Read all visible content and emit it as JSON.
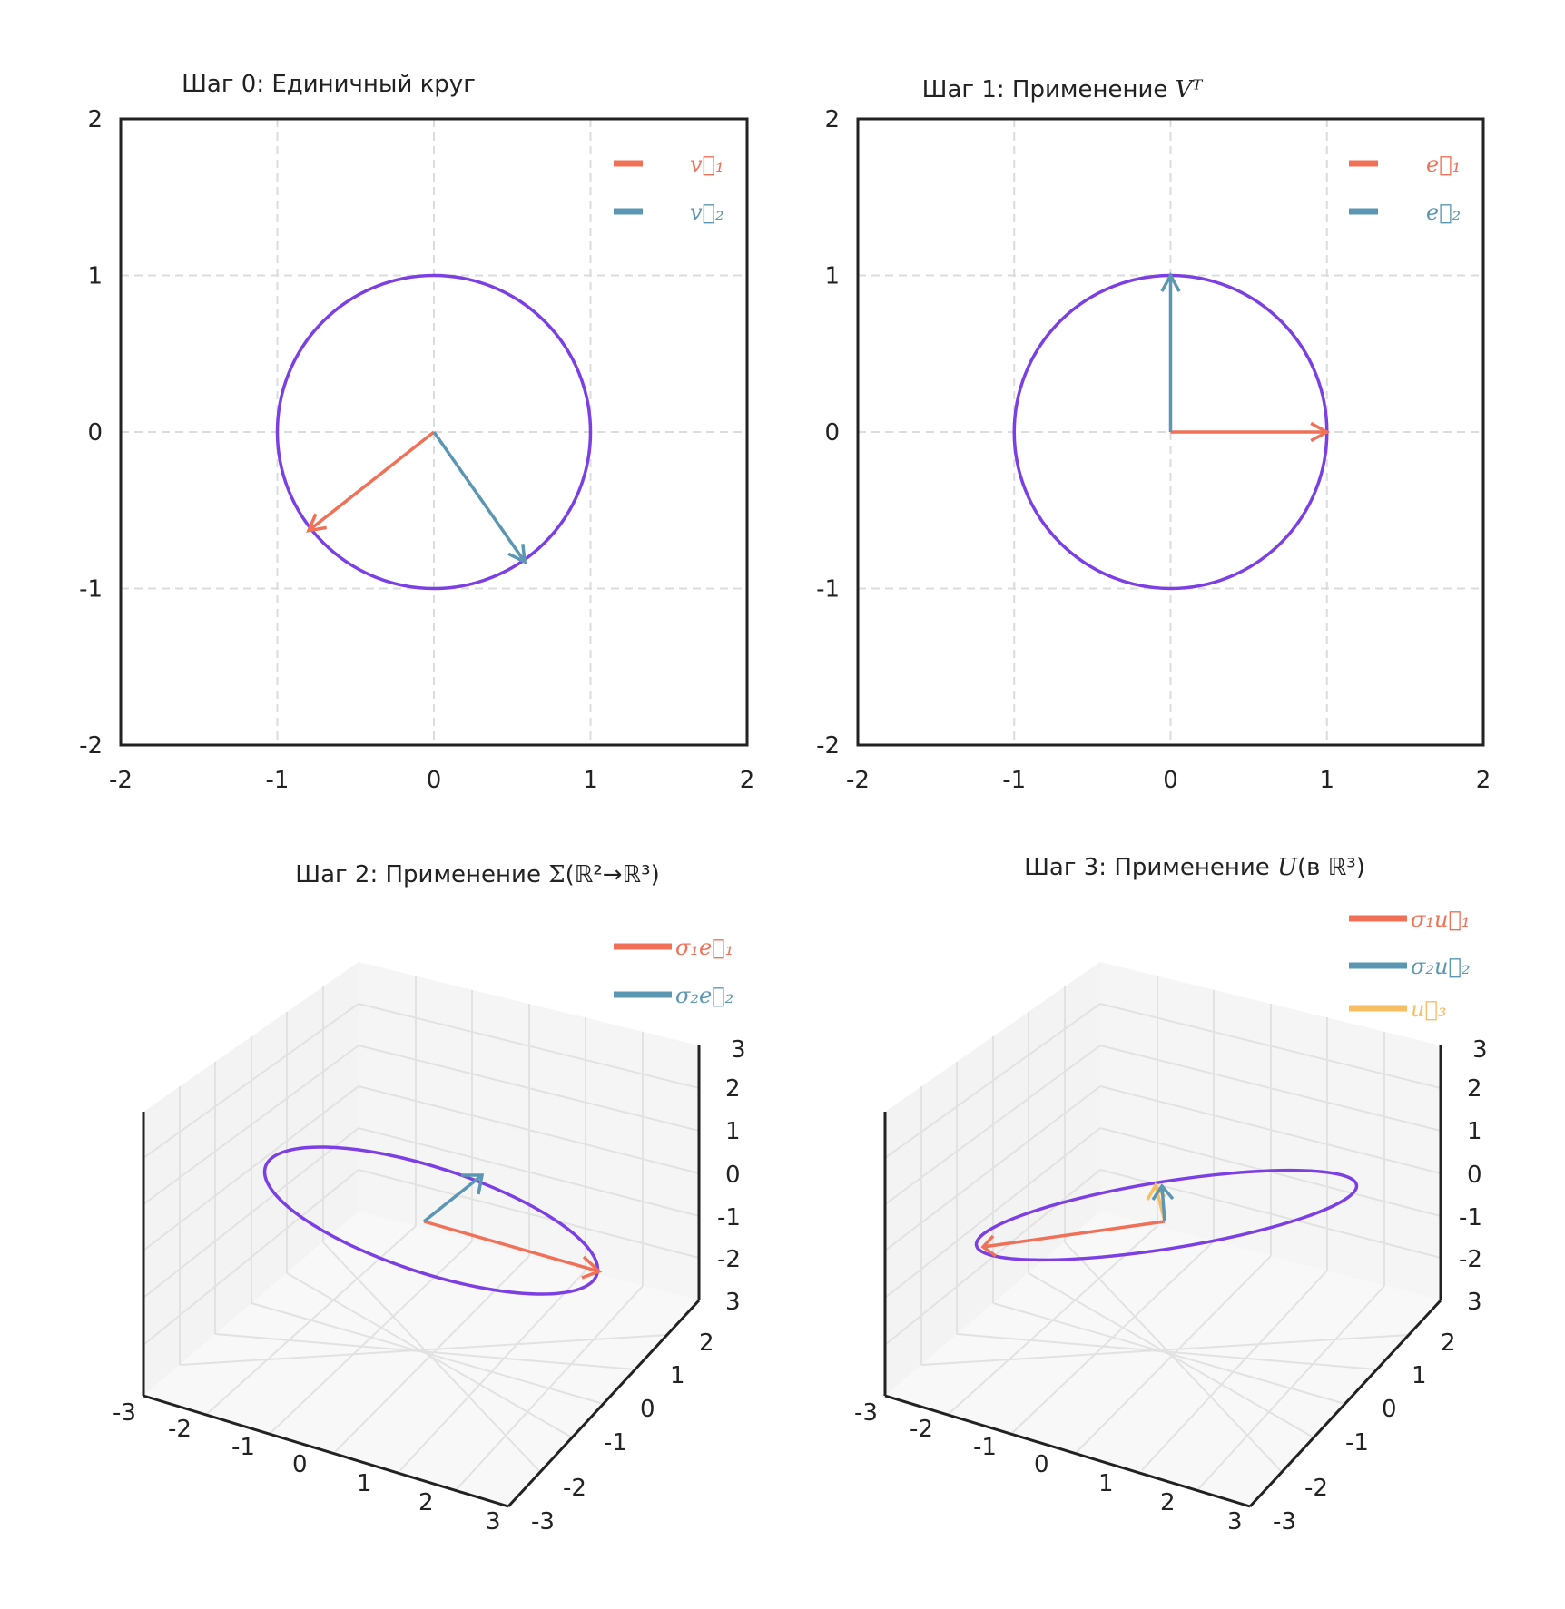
{
  "chart_data": [
    {
      "id": "step0",
      "type": "line",
      "title_prefix": "Шаг 0: Единичный круг",
      "title_math": "",
      "title_suffix": "",
      "xlim": [
        -2,
        2
      ],
      "ylim": [
        -2,
        2
      ],
      "xticks": [
        -2,
        -1,
        0,
        1,
        2
      ],
      "yticks": [
        -2,
        -1,
        0,
        1,
        2
      ],
      "xtick_labels": [
        "-2",
        "-1",
        "0",
        "1",
        "2"
      ],
      "ytick_labels": [
        "-2",
        "-1",
        "0",
        "1",
        "2"
      ],
      "grid": true,
      "legend_position": "top-right",
      "circle": {
        "center": [
          0,
          0
        ],
        "radius": 1,
        "color": "#7b3fe4"
      },
      "series": [
        {
          "name": "v1",
          "label": "v⃗₁",
          "color": "#f07158",
          "from": [
            0,
            0
          ],
          "to": [
            -0.8,
            -0.63
          ]
        },
        {
          "name": "v2",
          "label": "v⃗₂",
          "color": "#5b97b2",
          "from": [
            0,
            0
          ],
          "to": [
            0.58,
            -0.83
          ]
        }
      ]
    },
    {
      "id": "step1",
      "type": "line",
      "title_prefix": "Шаг 1: Применение ",
      "title_math": "Vᵀ",
      "title_suffix": "",
      "xlim": [
        -2,
        2
      ],
      "ylim": [
        -2,
        2
      ],
      "xticks": [
        -2,
        -1,
        0,
        1,
        2
      ],
      "yticks": [
        -2,
        -1,
        0,
        1,
        2
      ],
      "xtick_labels": [
        "-2",
        "-1",
        "0",
        "1",
        "2"
      ],
      "ytick_labels": [
        "-2",
        "-1",
        "0",
        "1",
        "2"
      ],
      "grid": true,
      "legend_position": "top-right",
      "circle": {
        "center": [
          0,
          0
        ],
        "radius": 1,
        "color": "#7b3fe4"
      },
      "series": [
        {
          "name": "e1",
          "label": "e⃗₁",
          "color": "#f07158",
          "from": [
            0,
            0
          ],
          "to": [
            1,
            0
          ]
        },
        {
          "name": "e2",
          "label": "e⃗₂",
          "color": "#5b97b2",
          "from": [
            0,
            0
          ],
          "to": [
            0,
            1
          ]
        }
      ]
    },
    {
      "id": "step2",
      "type": "line",
      "projection": "3d",
      "title_prefix": "Шаг 2: Применение ",
      "title_math": "Σ",
      "title_suffix": "(ℝ²→ℝ³)",
      "xlim": [
        -3,
        3
      ],
      "ylim": [
        -3,
        3
      ],
      "zlim": [
        -3,
        3
      ],
      "xtick_labels": [
        "-3",
        "-2",
        "-1",
        "0",
        "1",
        "2",
        "3"
      ],
      "ytick_labels": [
        "-3",
        "-2",
        "-1",
        "0",
        "1",
        "2"
      ],
      "ztick_labels": [
        "-2",
        "-1",
        "0",
        "1",
        "2",
        "3"
      ],
      "grid": true,
      "legend_position": "top-right",
      "ellipse_color": "#7b3fe4",
      "series": [
        {
          "name": "s1e1",
          "label": "σ₁e⃗₁",
          "color": "#f07158"
        },
        {
          "name": "s2e2",
          "label": "σ₂e⃗₂",
          "color": "#5b97b2"
        }
      ]
    },
    {
      "id": "step3",
      "type": "line",
      "projection": "3d",
      "title_prefix": "Шаг 3: Применение ",
      "title_math": "U",
      "title_suffix": "(в ℝ³)",
      "xlim": [
        -3,
        3
      ],
      "ylim": [
        -3,
        3
      ],
      "zlim": [
        -3,
        3
      ],
      "xtick_labels": [
        "-3",
        "-2",
        "-1",
        "0",
        "1",
        "2",
        "3"
      ],
      "ytick_labels": [
        "-3",
        "-2",
        "-1",
        "0",
        "1",
        "2"
      ],
      "ztick_labels": [
        "-2",
        "-1",
        "0",
        "1",
        "2",
        "3"
      ],
      "grid": true,
      "legend_position": "top-right",
      "ellipse_color": "#7b3fe4",
      "series": [
        {
          "name": "s1u1",
          "label": "σ₁u⃗₁",
          "color": "#f07158"
        },
        {
          "name": "s2u2",
          "label": "σ₂u⃗₂",
          "color": "#5b97b2"
        },
        {
          "name": "u3",
          "label": "u⃗₃",
          "color": "#f9bd62"
        }
      ]
    }
  ]
}
